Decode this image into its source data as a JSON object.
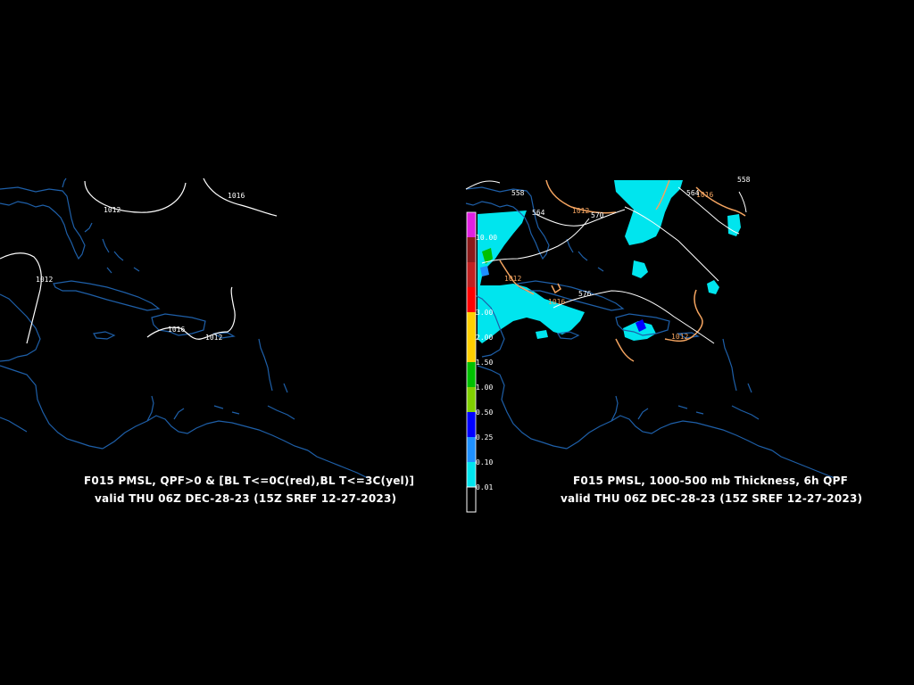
{
  "panels": {
    "left": {
      "title": "F015 PMSL, QPF>0 & [BL T<=0C(red),BL T<=3C(yel)]",
      "subtitle": "valid THU 06Z DEC-28-23 (15Z SREF 12-27-2023)",
      "isobar_labels": [
        "1016",
        "1012",
        "1012",
        "1016",
        "1012"
      ]
    },
    "right": {
      "title": "F015 PMSL, 1000-500 mb Thickness, 6h QPF",
      "subtitle": "valid THU 06Z DEC-28-23 (15Z SREF 12-27-2023)",
      "isobar_labels": [
        "1012",
        "1016",
        "1012",
        "1016",
        "1012"
      ],
      "thickness_labels": [
        "558",
        "564",
        "570",
        "576",
        "558",
        "564"
      ]
    }
  },
  "legend": {
    "levels": [
      {
        "label": "10.00",
        "color": "#e020e0"
      },
      {
        "label": "",
        "color": "#8b1a1a"
      },
      {
        "label": "",
        "color": "#c02020"
      },
      {
        "label": "3.00",
        "color": "#ff0000"
      },
      {
        "label": "2.00",
        "color": "#ffd000"
      },
      {
        "label": "1.50",
        "color": "#ffd000"
      },
      {
        "label": "1.00",
        "color": "#00c000"
      },
      {
        "label": "0.50",
        "color": "#80d000"
      },
      {
        "label": "0.25",
        "color": "#0000ff"
      },
      {
        "label": "0.10",
        "color": "#1e90ff"
      },
      {
        "label": "0.01",
        "color": "#00e5ee"
      },
      {
        "label": "",
        "color": "#000000"
      }
    ]
  },
  "colors": {
    "coastline": "#1e5fa8",
    "isobar": "#ffffff",
    "thickness": "#f4a460",
    "qpf_light": "#00e5ee"
  }
}
